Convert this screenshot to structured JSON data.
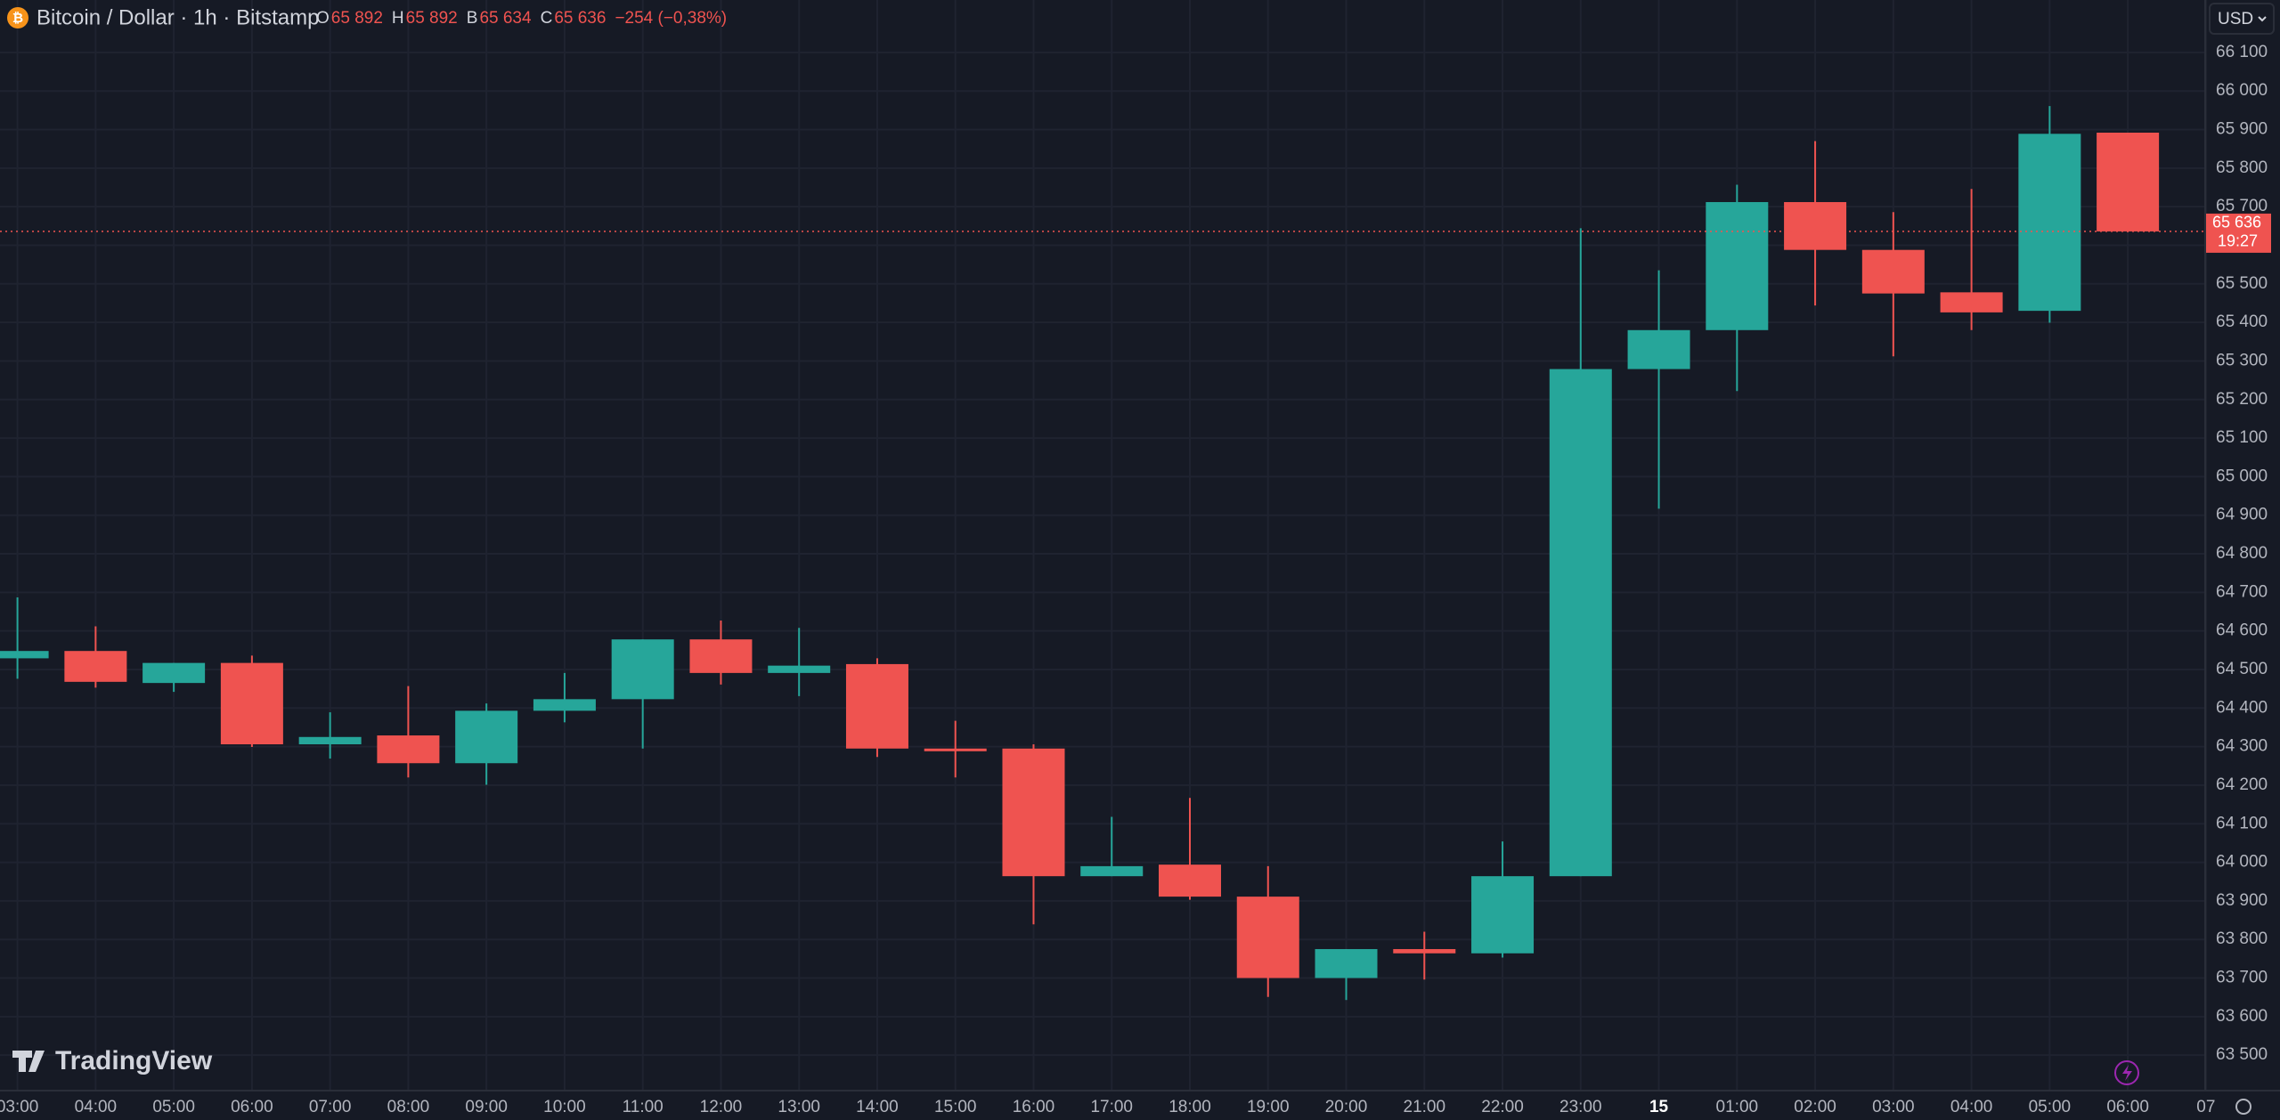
{
  "chart_data": {
    "type": "candlestick",
    "title": "Bitcoin / Dollar · 1h · Bitstamp",
    "legend_items": [
      {
        "key": "O",
        "value": "65 892"
      },
      {
        "key": "H",
        "value": "65 892"
      },
      {
        "key": "B",
        "value": "65 634"
      },
      {
        "key": "C",
        "value": "65 636"
      }
    ],
    "change": "−254 (−0,38%)",
    "currency": "USD",
    "last_price_label": "65 636",
    "countdown": "19:27",
    "logo": "TradingView",
    "categories": [
      "03:00",
      "04:00",
      "05:00",
      "06:00",
      "07:00",
      "08:00",
      "09:00",
      "10:00",
      "11:00",
      "12:00",
      "13:00",
      "14:00",
      "15:00",
      "16:00",
      "17:00",
      "18:00",
      "19:00",
      "20:00",
      "21:00",
      "22:00",
      "23:00",
      "15",
      "01:00",
      "02:00",
      "03:00",
      "04:00",
      "05:00",
      "06:00",
      "07"
    ],
    "open": [
      64529,
      64548,
      64465,
      64517,
      64306,
      64329,
      64257,
      64393,
      64423,
      64578,
      64491,
      64514,
      64295,
      64295,
      63964,
      63994,
      63911,
      63700,
      63775,
      63764,
      63964,
      65279,
      65380,
      65712,
      65588,
      65478,
      65430,
      65892,
      null
    ],
    "high": [
      64687,
      64612,
      64517,
      64536,
      64389,
      64457,
      64412,
      64491,
      64578,
      64627,
      64608,
      64529,
      64367,
      64306,
      64118,
      64167,
      63990,
      63775,
      63820,
      64054,
      65644,
      65535,
      65757,
      65870,
      65686,
      65746,
      65961,
      65892,
      null
    ],
    "low": [
      64476,
      64453,
      64442,
      64299,
      64269,
      64220,
      64201,
      64363,
      64295,
      64461,
      64431,
      64273,
      64220,
      63839,
      63964,
      63903,
      63651,
      63643,
      63696,
      63753,
      63964,
      64917,
      65222,
      65444,
      65312,
      65380,
      65399,
      65634,
      null
    ],
    "close": [
      64548,
      64468,
      64517,
      64306,
      64325,
      64257,
      64393,
      64423,
      64578,
      64491,
      64510,
      64295,
      64288,
      63964,
      63990,
      63911,
      63700,
      63775,
      63764,
      63964,
      65279,
      65380,
      65712,
      65588,
      65475,
      65426,
      65889,
      65636,
      null
    ],
    "up_color": "#26a69a",
    "down_color": "#ef5350",
    "ylim": [
      63408,
      66236
    ],
    "yticks": [
      {
        "value": 63500,
        "label": "63 500"
      },
      {
        "value": 63600,
        "label": "63 600"
      },
      {
        "value": 63700,
        "label": "63 700"
      },
      {
        "value": 63800,
        "label": "63 800"
      },
      {
        "value": 63900,
        "label": "63 900"
      },
      {
        "value": 64000,
        "label": "64 000"
      },
      {
        "value": 64100,
        "label": "64 100"
      },
      {
        "value": 64200,
        "label": "64 200"
      },
      {
        "value": 64300,
        "label": "64 300"
      },
      {
        "value": 64400,
        "label": "64 400"
      },
      {
        "value": 64500,
        "label": "64 500"
      },
      {
        "value": 64600,
        "label": "64 600"
      },
      {
        "value": 64700,
        "label": "64 700"
      },
      {
        "value": 64800,
        "label": "64 800"
      },
      {
        "value": 64900,
        "label": "64 900"
      },
      {
        "value": 65000,
        "label": "65 000"
      },
      {
        "value": 65100,
        "label": "65 100"
      },
      {
        "value": 65200,
        "label": "65 200"
      },
      {
        "value": 65300,
        "label": "65 300"
      },
      {
        "value": 65400,
        "label": "65 400"
      },
      {
        "value": 65500,
        "label": "65 500"
      },
      {
        "value": 65600,
        "label": "65 600"
      },
      {
        "value": 65700,
        "label": "65 700"
      },
      {
        "value": 65800,
        "label": "65 800"
      },
      {
        "value": 65900,
        "label": "65 900"
      },
      {
        "value": 66000,
        "label": "66 000"
      },
      {
        "value": 66100,
        "label": "66 100"
      }
    ],
    "grid": true
  }
}
